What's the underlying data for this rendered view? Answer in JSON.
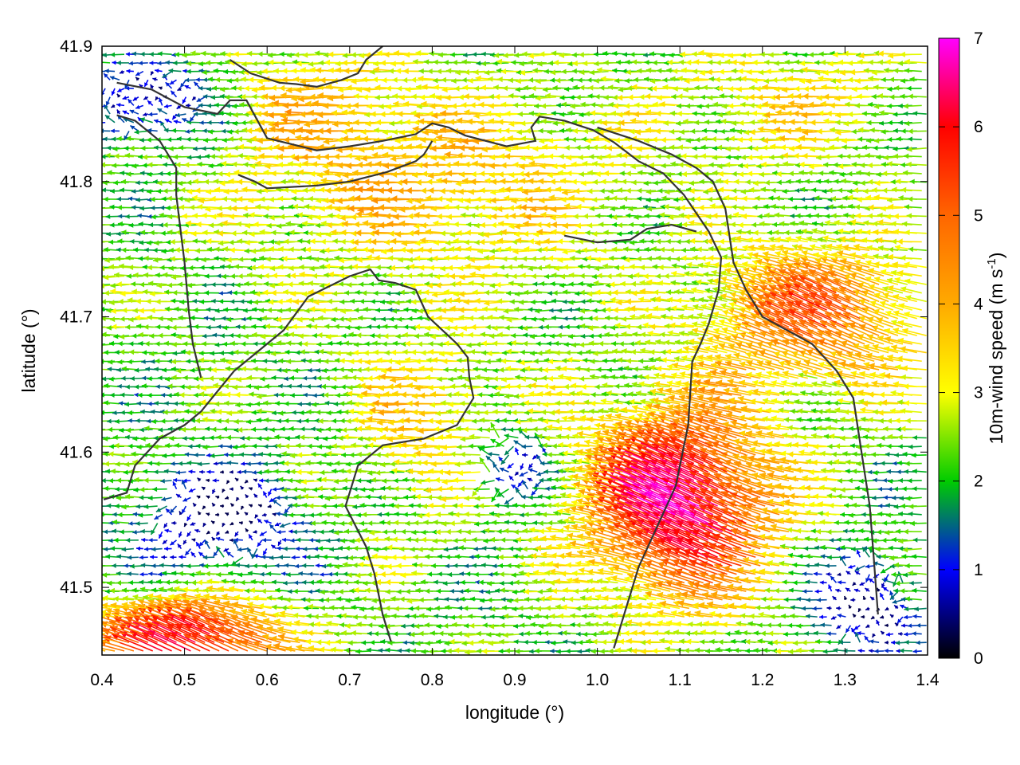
{
  "chart_data": {
    "type": "vector_field",
    "title": "",
    "xlabel": "longitude (°)",
    "ylabel": "latitude (°)",
    "xlim": [
      0.4,
      1.4
    ],
    "ylim": [
      41.45,
      41.9
    ],
    "xticks": [
      {
        "value": 0.4,
        "label": "0.4"
      },
      {
        "value": 0.5,
        "label": "0.5"
      },
      {
        "value": 0.6,
        "label": "0.6"
      },
      {
        "value": 0.7,
        "label": "0.7"
      },
      {
        "value": 0.8,
        "label": "0.8"
      },
      {
        "value": 0.9,
        "label": "0.9"
      },
      {
        "value": 1.0,
        "label": "1.0"
      },
      {
        "value": 1.1,
        "label": "1.1"
      },
      {
        "value": 1.2,
        "label": "1.2"
      },
      {
        "value": 1.3,
        "label": "1.3"
      },
      {
        "value": 1.4,
        "label": "1.4"
      }
    ],
    "yticks": [
      {
        "value": 41.5,
        "label": "41.5"
      },
      {
        "value": 41.6,
        "label": "41.6"
      },
      {
        "value": 41.7,
        "label": "41.7"
      },
      {
        "value": 41.8,
        "label": "41.8"
      },
      {
        "value": 41.9,
        "label": "41.9"
      }
    ],
    "colorbar": {
      "label": "10m-wind speed (m s-1)",
      "label_main": "10m-wind speed (m s",
      "label_sup": "-1",
      "label_close": ")",
      "range": [
        0,
        7
      ],
      "ticks": [
        {
          "value": 0,
          "label": "0"
        },
        {
          "value": 1,
          "label": "1"
        },
        {
          "value": 2,
          "label": "2"
        },
        {
          "value": 3,
          "label": "3"
        },
        {
          "value": 4,
          "label": "4"
        },
        {
          "value": 5,
          "label": "5"
        },
        {
          "value": 6,
          "label": "6"
        },
        {
          "value": 7,
          "label": "7"
        }
      ],
      "colors": [
        {
          "value": 0,
          "color": "#000000"
        },
        {
          "value": 1,
          "color": "#0000ff"
        },
        {
          "value": 2,
          "color": "#00cc00"
        },
        {
          "value": 3,
          "color": "#ffff00"
        },
        {
          "value": 4,
          "color": "#ffaa00"
        },
        {
          "value": 5,
          "color": "#ff6600"
        },
        {
          "value": 6,
          "color": "#ff0000"
        },
        {
          "value": 7,
          "color": "#ff00ff"
        }
      ]
    },
    "contour_color": "#333333",
    "wind_field": {
      "grid": {
        "dlon": 0.0115,
        "dlat": 0.0063
      },
      "regions": [
        {
          "region": "general land / valleys",
          "speed_m_s": 2.2,
          "direction_from": "east"
        },
        {
          "region": "upper plateau (north-central)",
          "speed_m_s": 3.8,
          "direction_from": "east"
        },
        {
          "region": "south-east gap (1.0-1.25 lon, 41.5-41.65 lat)",
          "speed_m_s": 6.8,
          "direction_from": "south-east"
        },
        {
          "region": "east (1.15-1.4 lon, 41.62-41.75 lat)",
          "speed_m_s": 5.2,
          "direction_from": "south-east"
        },
        {
          "region": "south-west corner",
          "speed_m_s": 6.5,
          "direction_from": "south-east"
        },
        {
          "region": "low-lying sheltered spots",
          "speed_m_s": 0.9,
          "direction_from": "variable"
        }
      ]
    },
    "contours": [
      [
        [
          0.418,
          41.873
        ],
        [
          0.46,
          41.868
        ],
        [
          0.5,
          41.855
        ],
        [
          0.54,
          41.85
        ],
        [
          0.555,
          41.86
        ],
        [
          0.575,
          41.86
        ],
        [
          0.6,
          41.832
        ],
        [
          0.66,
          41.823
        ],
        [
          0.7,
          41.826
        ],
        [
          0.74,
          41.83
        ],
        [
          0.78,
          41.835
        ],
        [
          0.8,
          41.843
        ],
        [
          0.82,
          41.84
        ],
        [
          0.84,
          41.834
        ],
        [
          0.89,
          41.826
        ],
        [
          0.925,
          41.83
        ],
        [
          0.92,
          41.84
        ],
        [
          0.93,
          41.848
        ],
        [
          0.96,
          41.845
        ],
        [
          0.995,
          41.838
        ],
        [
          1.02,
          41.829
        ],
        [
          1.05,
          41.815
        ],
        [
          1.08,
          41.806
        ],
        [
          1.105,
          41.79
        ],
        [
          1.135,
          41.763
        ],
        [
          1.15,
          41.744
        ],
        [
          1.147,
          41.72
        ],
        [
          1.135,
          41.695
        ],
        [
          1.125,
          41.68
        ],
        [
          1.115,
          41.667
        ],
        [
          1.11,
          41.62
        ],
        [
          1.095,
          41.575
        ],
        [
          1.08,
          41.555
        ],
        [
          1.05,
          41.515
        ],
        [
          1.02,
          41.455
        ]
      ],
      [
        [
          0.418,
          41.849
        ],
        [
          0.44,
          41.845
        ],
        [
          0.47,
          41.83
        ],
        [
          0.49,
          41.81
        ],
        [
          0.49,
          41.79
        ],
        [
          0.495,
          41.765
        ],
        [
          0.5,
          41.74
        ],
        [
          0.505,
          41.705
        ],
        [
          0.51,
          41.68
        ],
        [
          0.52,
          41.655
        ]
      ],
      [
        [
          0.402,
          41.565
        ],
        [
          0.43,
          41.57
        ],
        [
          0.44,
          41.59
        ],
        [
          0.47,
          41.61
        ],
        [
          0.5,
          41.62
        ],
        [
          0.52,
          41.63
        ],
        [
          0.54,
          41.645
        ],
        [
          0.56,
          41.66
        ],
        [
          0.6,
          41.68
        ],
        [
          0.62,
          41.69
        ],
        [
          0.65,
          41.715
        ],
        [
          0.7,
          41.73
        ],
        [
          0.725,
          41.735
        ],
        [
          0.735,
          41.727
        ],
        [
          0.755,
          41.725
        ],
        [
          0.78,
          41.72
        ],
        [
          0.795,
          41.7
        ],
        [
          0.83,
          41.68
        ],
        [
          0.843,
          41.67
        ],
        [
          0.845,
          41.655
        ],
        [
          0.85,
          41.64
        ],
        [
          0.83,
          41.62
        ],
        [
          0.79,
          41.61
        ],
        [
          0.74,
          41.605
        ],
        [
          0.71,
          41.59
        ],
        [
          0.695,
          41.56
        ],
        [
          0.72,
          41.53
        ],
        [
          0.73,
          41.51
        ],
        [
          0.74,
          41.48
        ],
        [
          0.75,
          41.46
        ]
      ],
      [
        [
          0.555,
          41.89
        ],
        [
          0.58,
          41.88
        ],
        [
          0.615,
          41.873
        ],
        [
          0.635,
          41.872
        ],
        [
          0.66,
          41.87
        ],
        [
          0.69,
          41.875
        ],
        [
          0.71,
          41.88
        ],
        [
          0.72,
          41.89
        ],
        [
          0.74,
          41.9
        ]
      ],
      [
        [
          0.565,
          41.805
        ],
        [
          0.585,
          41.8
        ],
        [
          0.6,
          41.795
        ],
        [
          0.66,
          41.797
        ],
        [
          0.7,
          41.8
        ],
        [
          0.745,
          41.807
        ],
        [
          0.78,
          41.815
        ],
        [
          0.79,
          41.82
        ],
        [
          0.8,
          41.83
        ]
      ],
      [
        [
          1.0,
          41.84
        ],
        [
          1.05,
          41.83
        ],
        [
          1.09,
          41.82
        ],
        [
          1.12,
          41.81
        ],
        [
          1.14,
          41.8
        ],
        [
          1.155,
          41.78
        ],
        [
          1.16,
          41.76
        ],
        [
          1.165,
          41.74
        ],
        [
          1.18,
          41.72
        ],
        [
          1.2,
          41.7
        ],
        [
          1.23,
          41.69
        ],
        [
          1.26,
          41.68
        ],
        [
          1.29,
          41.66
        ],
        [
          1.31,
          41.64
        ],
        [
          1.32,
          41.6
        ],
        [
          1.33,
          41.56
        ],
        [
          1.335,
          41.52
        ],
        [
          1.34,
          41.48
        ]
      ],
      [
        [
          0.96,
          41.76
        ],
        [
          1.0,
          41.755
        ],
        [
          1.04,
          41.757
        ],
        [
          1.06,
          41.765
        ],
        [
          1.09,
          41.768
        ],
        [
          1.12,
          41.763
        ]
      ]
    ]
  }
}
